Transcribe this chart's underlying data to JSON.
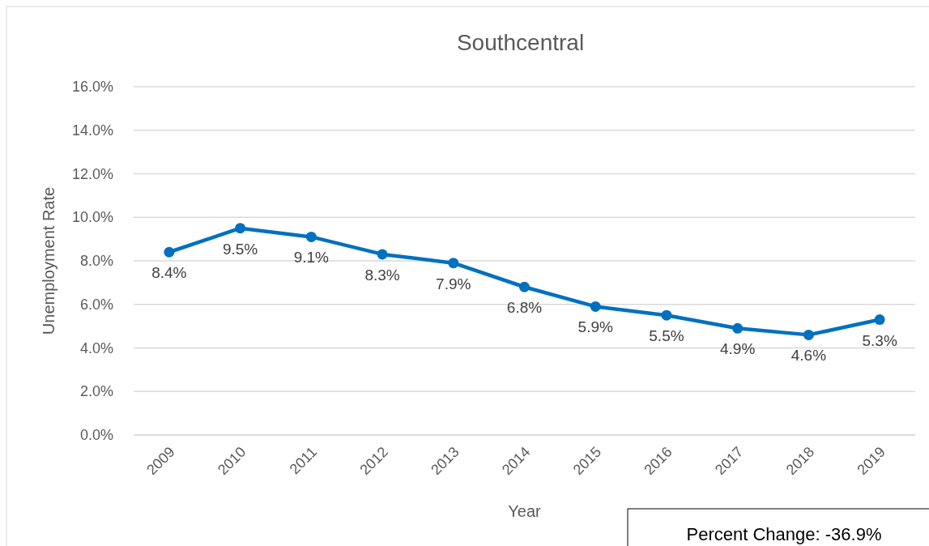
{
  "chart_data": {
    "type": "line",
    "title": "Southcentral",
    "xlabel": "Year",
    "ylabel": "Unemployment Rate",
    "categories": [
      "2009",
      "2010",
      "2011",
      "2012",
      "2013",
      "2014",
      "2015",
      "2016",
      "2017",
      "2018",
      "2019"
    ],
    "series": [
      {
        "color": "#0070c0",
        "values": [
          8.4,
          9.5,
          9.1,
          8.3,
          7.9,
          6.8,
          5.9,
          5.5,
          4.9,
          4.6,
          5.3
        ],
        "value_labels": [
          "8.4%",
          "9.5%",
          "9.1%",
          "8.3%",
          "7.9%",
          "6.8%",
          "5.9%",
          "5.5%",
          "4.9%",
          "4.6%",
          "5.3%"
        ]
      }
    ],
    "ylim": [
      0,
      16
    ],
    "yticks": [
      {
        "value": 0,
        "label": "0.0%"
      },
      {
        "value": 2,
        "label": "2.0%"
      },
      {
        "value": 4,
        "label": "4.0%"
      },
      {
        "value": 6,
        "label": "6.0%"
      },
      {
        "value": 8,
        "label": "8.0%"
      },
      {
        "value": 10,
        "label": "10.0%"
      },
      {
        "value": 12,
        "label": "12.0%"
      },
      {
        "value": 14,
        "label": "14.0%"
      },
      {
        "value": 16,
        "label": "16.0%"
      }
    ],
    "grid": "y",
    "marker": "circle",
    "line_style": "solid",
    "annotations": [
      "Percent Change: -36.9%"
    ]
  }
}
